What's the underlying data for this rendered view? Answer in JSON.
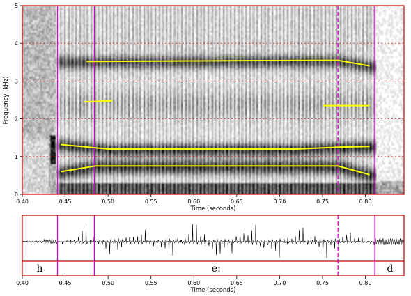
{
  "chart_data": [
    {
      "type": "spectrogram",
      "xlabel": "Time (seconds)",
      "ylabel": "Frequency (kHz)",
      "xlim": [
        0.4,
        0.845
      ],
      "ylim": [
        0,
        5
      ],
      "x_ticks": [
        0.4,
        0.45,
        0.5,
        0.55,
        0.6,
        0.65,
        0.7,
        0.75,
        0.8
      ],
      "x_tick_labels": [
        "0.40",
        "0.45",
        "0.50",
        "0.55",
        "0.60",
        "0.65",
        "0.70",
        "0.75",
        "0.80"
      ],
      "y_ticks": [
        0,
        1,
        2,
        3,
        4,
        5
      ],
      "y_tick_labels": [
        "0",
        "1",
        "2",
        "3",
        "4",
        "5"
      ],
      "grid": "dashed horizontal at each kHz",
      "colors": {
        "frame": "#cc0000",
        "boundary": "#cc00cc",
        "formant": "#ffff00"
      },
      "boundaries": [
        {
          "t": 0.441,
          "style": "solid"
        },
        {
          "t": 0.484,
          "style": "solid"
        },
        {
          "t": 0.768,
          "style": "dashed"
        },
        {
          "t": 0.811,
          "style": "solid"
        }
      ],
      "formant_tracks": [
        {
          "points": [
            [
              0.445,
              0.6
            ],
            [
              0.485,
              0.75
            ],
            [
              0.768,
              0.75
            ],
            [
              0.805,
              0.52
            ]
          ]
        },
        {
          "points": [
            [
              0.445,
              1.32
            ],
            [
              0.5,
              1.2
            ],
            [
              0.72,
              1.2
            ],
            [
              0.768,
              1.25
            ],
            [
              0.805,
              1.27
            ]
          ]
        },
        {
          "points": [
            [
              0.472,
              2.45
            ],
            [
              0.505,
              2.48
            ]
          ]
        },
        {
          "points": [
            [
              0.751,
              2.35
            ],
            [
              0.805,
              2.35
            ]
          ]
        },
        {
          "points": [
            [
              0.475,
              3.52
            ],
            [
              0.768,
              3.55
            ],
            [
              0.805,
              3.4
            ]
          ]
        }
      ]
    },
    {
      "type": "waveform",
      "xlabel": "Time (seconds)",
      "xlim": [
        0.4,
        0.845
      ],
      "x_ticks": [
        0.4,
        0.45,
        0.5,
        0.55,
        0.6,
        0.65,
        0.7,
        0.75,
        0.8
      ],
      "x_tick_labels": [
        "0.40",
        "0.45",
        "0.50",
        "0.55",
        "0.60",
        "0.65",
        "0.70",
        "0.75",
        "0.80"
      ],
      "segments": [
        {
          "label": "h",
          "start": 0.4,
          "end": 0.441
        },
        {
          "label": "e:",
          "start": 0.441,
          "end": 0.811
        },
        {
          "label": "d",
          "start": 0.811,
          "end": 0.845
        }
      ]
    }
  ]
}
